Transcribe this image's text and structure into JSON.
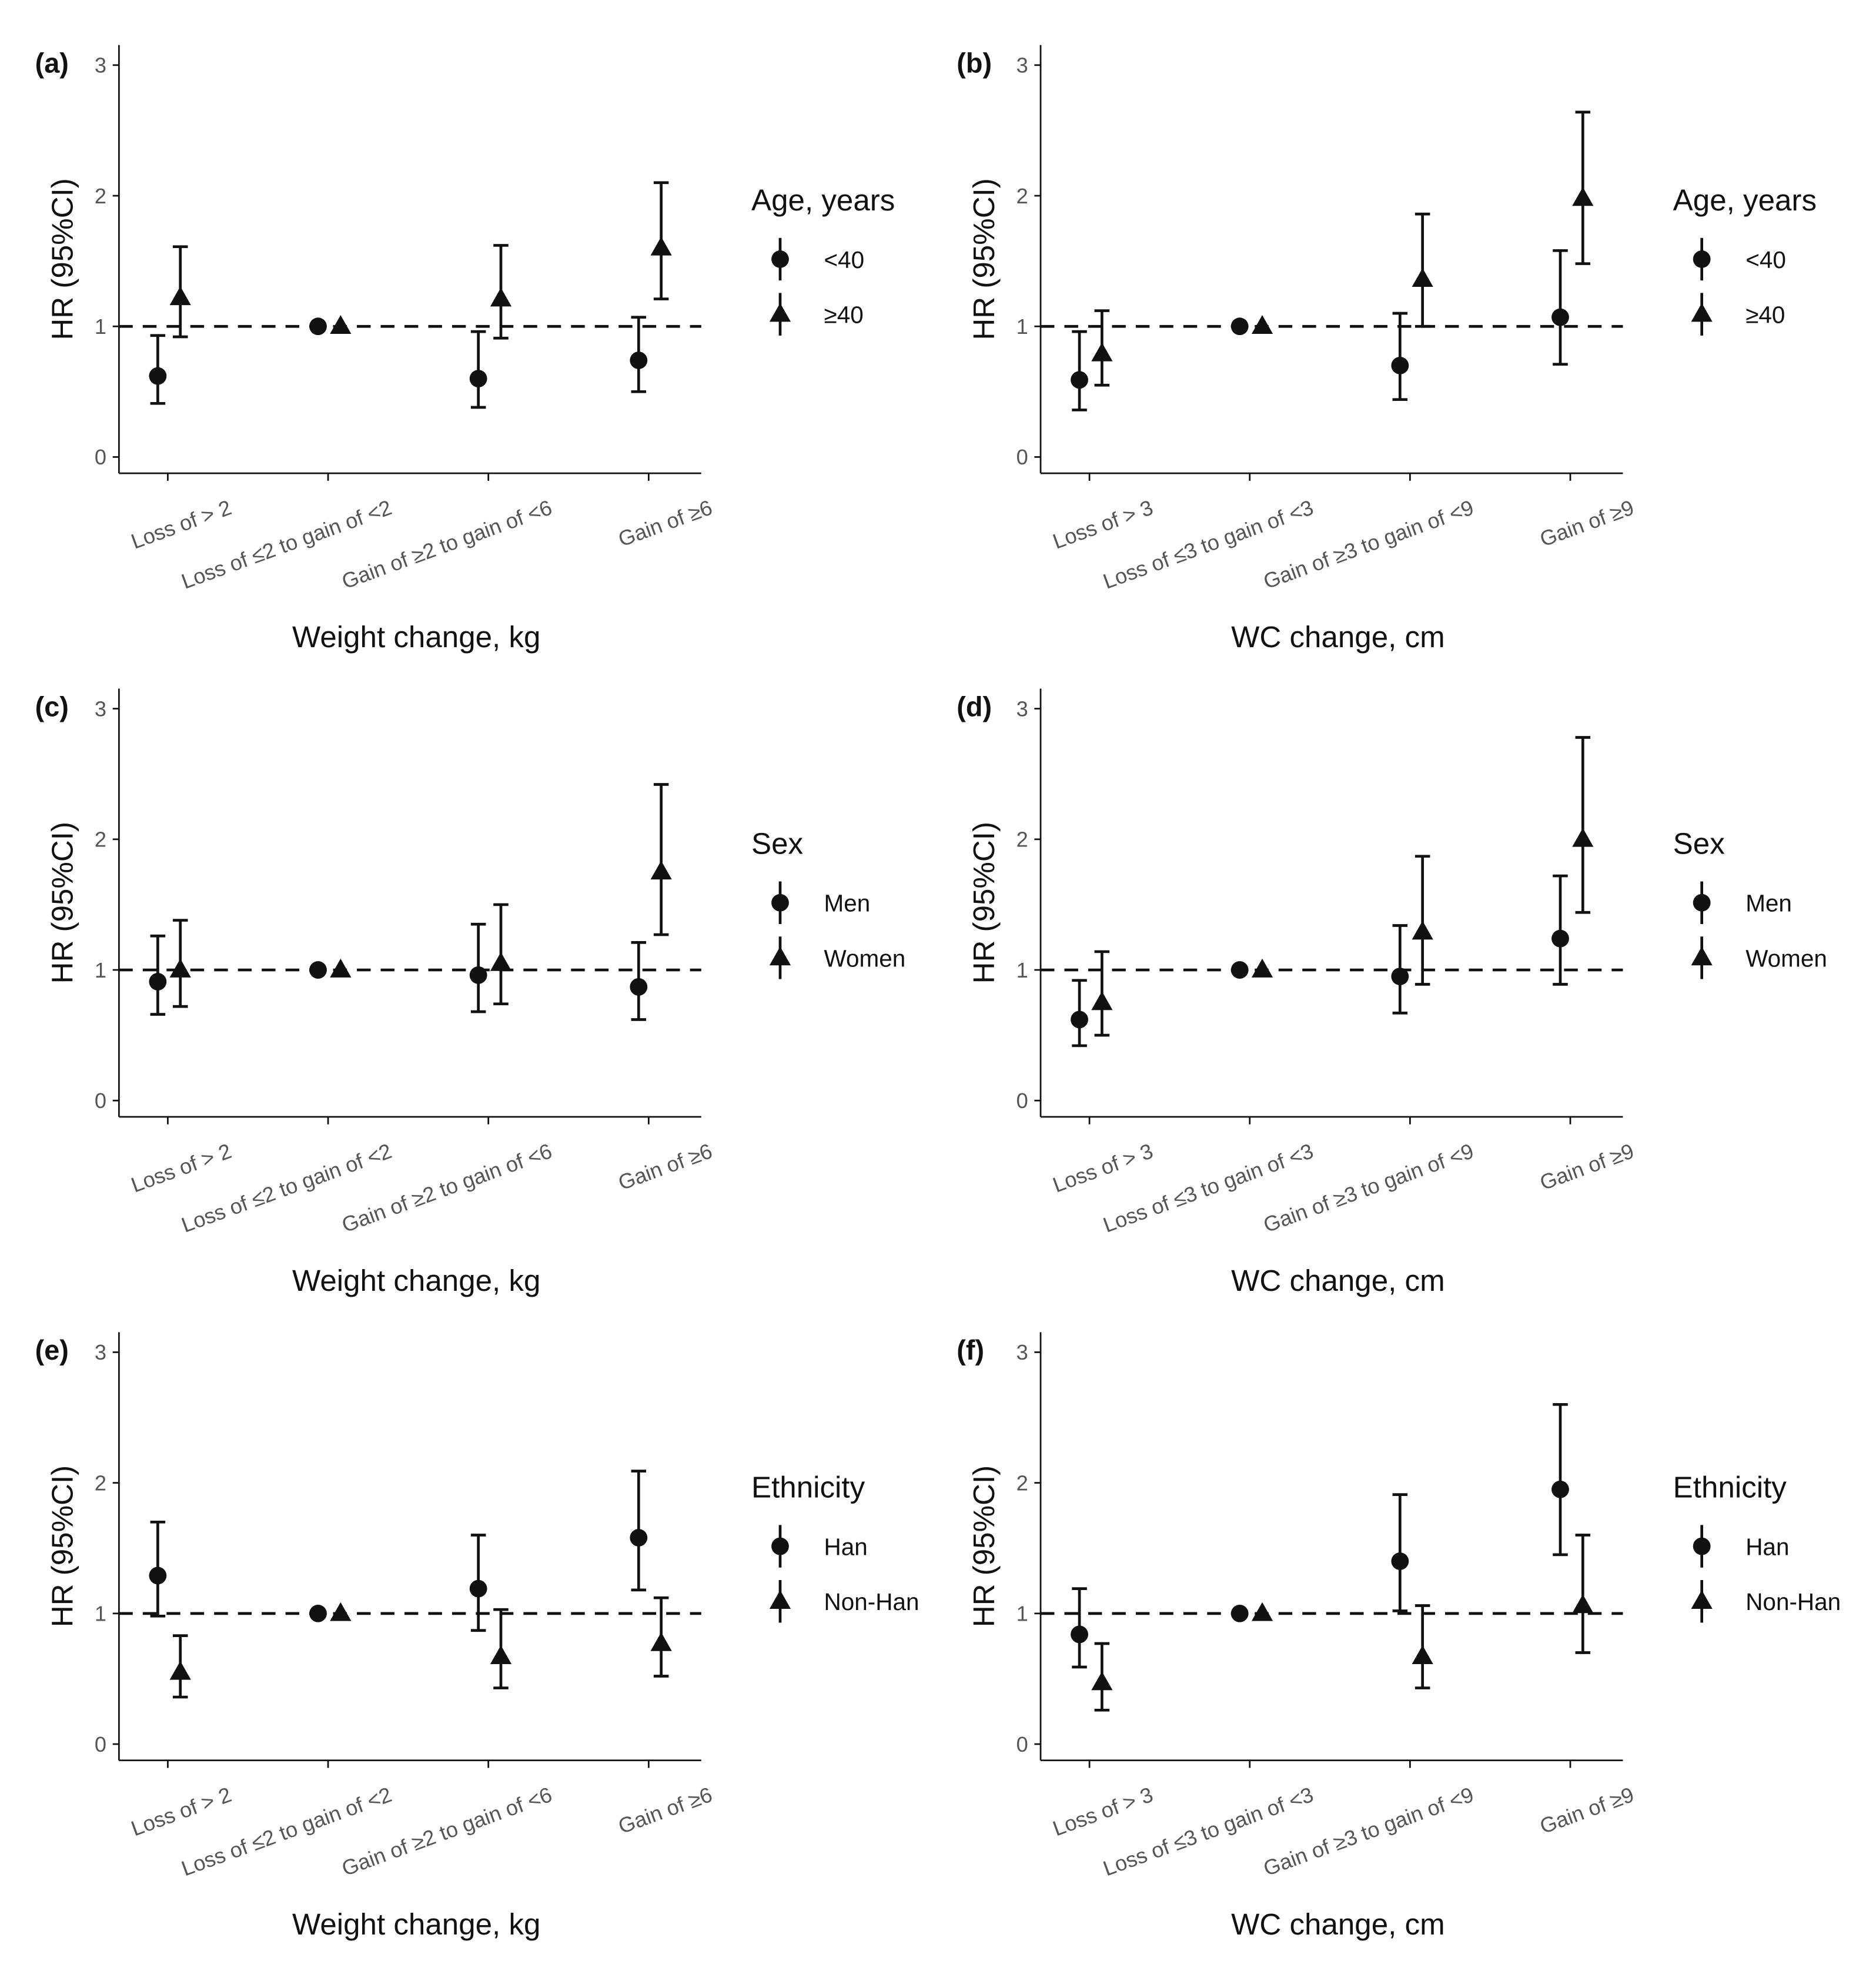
{
  "figure": {
    "y_axis_label": "HR (95%CI)",
    "reference_line": 1
  },
  "chart_data": [
    {
      "panel": "(a)",
      "type": "scatter-errorbar",
      "title": "",
      "xlabel": "Weight change, kg",
      "ylabel": "HR (95%CI)",
      "ylim": [
        0,
        3
      ],
      "yticks": [
        "0",
        "1",
        "2",
        "3"
      ],
      "categories": [
        "Loss of > 2",
        "Loss of ≤2 to gain of <2",
        "Gain of ≥2 to gain of <6",
        "Gain of ≥6"
      ],
      "legend": {
        "title": "Age, years",
        "position": "right"
      },
      "series": [
        {
          "name": "<40",
          "marker": "circle",
          "values": [
            0.62,
            1.0,
            0.6,
            0.74
          ],
          "lower": [
            0.41,
            1.0,
            0.38,
            0.5
          ],
          "upper": [
            0.93,
            1.0,
            0.96,
            1.07
          ]
        },
        {
          "name": "≥40",
          "marker": "triangle",
          "values": [
            1.22,
            1.0,
            1.21,
            1.6
          ],
          "lower": [
            0.92,
            1.0,
            0.91,
            1.21
          ],
          "upper": [
            1.61,
            1.0,
            1.62,
            2.1
          ]
        }
      ]
    },
    {
      "panel": "(b)",
      "type": "scatter-errorbar",
      "title": "",
      "xlabel": "WC change, cm",
      "ylabel": "HR (95%CI)",
      "ylim": [
        0,
        3
      ],
      "yticks": [
        "0",
        "1",
        "2",
        "3"
      ],
      "categories": [
        "Loss of > 3",
        "Loss of ≤3 to gain of <3",
        "Gain of ≥3 to gain of <9",
        "Gain of ≥9"
      ],
      "legend": {
        "title": "Age, years",
        "position": "right"
      },
      "series": [
        {
          "name": "<40",
          "marker": "circle",
          "values": [
            0.59,
            1.0,
            0.7,
            1.07
          ],
          "lower": [
            0.36,
            1.0,
            0.44,
            0.71
          ],
          "upper": [
            0.96,
            1.0,
            1.1,
            1.58
          ]
        },
        {
          "name": "≥40",
          "marker": "triangle",
          "values": [
            0.79,
            1.0,
            1.36,
            1.98
          ],
          "lower": [
            0.55,
            1.0,
            1.0,
            1.48
          ],
          "upper": [
            1.12,
            1.0,
            1.86,
            2.64
          ]
        }
      ]
    },
    {
      "panel": "(c)",
      "type": "scatter-errorbar",
      "title": "",
      "xlabel": "Weight change, kg",
      "ylabel": "HR (95%CI)",
      "ylim": [
        0,
        3
      ],
      "yticks": [
        "0",
        "1",
        "2",
        "3"
      ],
      "categories": [
        "Loss of > 2",
        "Loss of ≤2 to gain of <2",
        "Gain of ≥2 to gain of <6",
        "Gain of ≥6"
      ],
      "legend": {
        "title": "Sex",
        "position": "right"
      },
      "series": [
        {
          "name": "Men",
          "marker": "circle",
          "values": [
            0.91,
            1.0,
            0.96,
            0.87
          ],
          "lower": [
            0.66,
            1.0,
            0.68,
            0.62
          ],
          "upper": [
            1.26,
            1.0,
            1.35,
            1.21
          ]
        },
        {
          "name": "Women",
          "marker": "triangle",
          "values": [
            1.0,
            1.0,
            1.05,
            1.75
          ],
          "lower": [
            0.72,
            1.0,
            0.74,
            1.27
          ],
          "upper": [
            1.38,
            1.0,
            1.5,
            2.42
          ]
        }
      ]
    },
    {
      "panel": "(d)",
      "type": "scatter-errorbar",
      "title": "",
      "xlabel": "WC change, cm",
      "ylabel": "HR (95%CI)",
      "ylim": [
        0,
        3
      ],
      "yticks": [
        "0",
        "1",
        "2",
        "3"
      ],
      "categories": [
        "Loss of > 3",
        "Loss of ≤3 to gain of <3",
        "Gain of ≥3 to gain of <9",
        "Gain of ≥9"
      ],
      "legend": {
        "title": "Sex",
        "position": "right"
      },
      "series": [
        {
          "name": "Men",
          "marker": "circle",
          "values": [
            0.62,
            1.0,
            0.95,
            1.24
          ],
          "lower": [
            0.42,
            1.0,
            0.67,
            0.89
          ],
          "upper": [
            0.92,
            1.0,
            1.34,
            1.72
          ]
        },
        {
          "name": "Women",
          "marker": "triangle",
          "values": [
            0.75,
            1.0,
            1.29,
            2.0
          ],
          "lower": [
            0.5,
            1.0,
            0.89,
            1.44
          ],
          "upper": [
            1.14,
            1.0,
            1.87,
            2.78
          ]
        }
      ]
    },
    {
      "panel": "(e)",
      "type": "scatter-errorbar",
      "title": "",
      "xlabel": "Weight change, kg",
      "ylabel": "HR (95%CI)",
      "ylim": [
        0,
        3
      ],
      "yticks": [
        "0",
        "1",
        "2",
        "3"
      ],
      "categories": [
        "Loss of > 2",
        "Loss of ≤2 to gain of <2",
        "Gain of ≥2 to gain of <6",
        "Gain of ≥6"
      ],
      "legend": {
        "title": "Ethnicity",
        "position": "right"
      },
      "series": [
        {
          "name": "Han",
          "marker": "circle",
          "values": [
            1.29,
            1.0,
            1.19,
            1.58
          ],
          "lower": [
            0.98,
            1.0,
            0.87,
            1.18
          ],
          "upper": [
            1.7,
            1.0,
            1.6,
            2.09
          ]
        },
        {
          "name": "Non-Han",
          "marker": "triangle",
          "values": [
            0.55,
            1.0,
            0.67,
            0.77
          ],
          "lower": [
            0.36,
            1.0,
            0.43,
            0.52
          ],
          "upper": [
            0.83,
            1.0,
            1.03,
            1.12
          ]
        }
      ]
    },
    {
      "panel": "(f)",
      "type": "scatter-errorbar",
      "title": "",
      "xlabel": "WC change, cm",
      "ylabel": "HR (95%CI)",
      "ylim": [
        0,
        3
      ],
      "yticks": [
        "0",
        "1",
        "2",
        "3"
      ],
      "categories": [
        "Loss of > 3",
        "Loss of ≤3 to gain of <3",
        "Gain of ≥3 to gain of <9",
        "Gain of ≥9"
      ],
      "legend": {
        "title": "Ethnicity",
        "position": "right"
      },
      "series": [
        {
          "name": "Han",
          "marker": "circle",
          "values": [
            0.84,
            1.0,
            1.4,
            1.95
          ],
          "lower": [
            0.59,
            1.0,
            1.02,
            1.45
          ],
          "upper": [
            1.19,
            1.0,
            1.91,
            2.6
          ]
        },
        {
          "name": "Non-Han",
          "marker": "triangle",
          "values": [
            0.47,
            1.0,
            0.67,
            1.06
          ],
          "lower": [
            0.26,
            1.0,
            0.43,
            0.7
          ],
          "upper": [
            0.77,
            1.0,
            1.06,
            1.6
          ]
        }
      ]
    }
  ]
}
